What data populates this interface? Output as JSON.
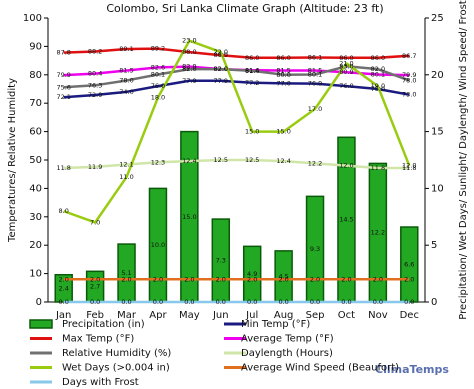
{
  "chart_data": {
    "type": "combo",
    "title": "Colombo, Sri Lanka Climate Graph (Altitude: 23 ft)",
    "y_label": "Temperatures/ Relative Humidity",
    "y2_label": "Precipitation/ Wet Days/ Sunlight/ Daylength/ Wind Speed/ Frost",
    "categories": [
      "Jan",
      "Feb",
      "Mar",
      "Apr",
      "May",
      "Jun",
      "Jul",
      "Aug",
      "Sep",
      "Oct",
      "Nov",
      "Dec"
    ],
    "ylim": [
      0,
      100
    ],
    "yticks": [
      0,
      10,
      20,
      30,
      40,
      50,
      60,
      70,
      80,
      90,
      100
    ],
    "y2lim": [
      0,
      25
    ],
    "y2ticks": [
      0,
      5,
      10,
      15,
      20,
      25
    ],
    "series": [
      {
        "name": "Precipitation (in)",
        "type": "bar",
        "axis": "y2",
        "color": "#22a822",
        "values": [
          2.4,
          2.7,
          5.1,
          10.0,
          15.0,
          7.3,
          4.9,
          4.5,
          9.3,
          14.5,
          12.2,
          6.6
        ],
        "value_labels": [
          "2.4",
          "2.7",
          "5.1",
          "10.0",
          "15.0",
          "7.3",
          "4.9",
          "4.5",
          "9.3",
          "14.5",
          "12.2",
          "6.6"
        ]
      },
      {
        "name": "Min Temp (°F)",
        "type": "line",
        "color": "#1a1a80",
        "values": [
          72.1,
          72.9,
          74.0,
          76.0,
          77.9,
          77.9,
          77.2,
          77.0,
          76.9,
          76.0,
          75.0,
          73.0
        ],
        "value_labels": [
          "72.1",
          "72.9",
          "74.0",
          "76.0",
          "77.9",
          "77.9",
          "77.2",
          "77.0",
          "76.9",
          "76.0",
          "75.0",
          "73.0"
        ]
      },
      {
        "name": "Max Temp (°F)",
        "type": "line",
        "color": "#e01010",
        "values": [
          87.8,
          88.2,
          89.1,
          89.2,
          88.0,
          86.9,
          86.0,
          86.0,
          86.1,
          86.0,
          86.0,
          86.7
        ],
        "value_labels": [
          "87.8",
          "88.2",
          "89.1",
          "89.2",
          "88.0",
          "86.9",
          "86.0",
          "86.0",
          "86.1",
          "86.0",
          "86.0",
          "86.7"
        ]
      },
      {
        "name": "Average Temp (°F)",
        "type": "line",
        "color": "#ee00ee",
        "values": [
          79.9,
          80.4,
          81.5,
          82.6,
          82.9,
          82.0,
          81.6,
          81.5,
          81.5,
          80.9,
          80.1,
          79.9
        ],
        "value_labels": [
          "79.9",
          "80.4",
          "81.5",
          "82.6",
          "82.9",
          "82.0",
          "81.6",
          "81.5",
          "81.5",
          "80.9",
          "80.1",
          "79.9"
        ]
      },
      {
        "name": "Relative Humidity (%)",
        "type": "line",
        "color": "#707070",
        "values": [
          75.6,
          76.3,
          78.0,
          80.1,
          82.0,
          82.0,
          81.4,
          80.0,
          80.1,
          83.0,
          82.0,
          78.0
        ],
        "value_labels": [
          "75.6",
          "76.3",
          "78.0",
          "80.1",
          "82.0",
          "82.0",
          "81.4",
          "80.0",
          "80.1",
          "83.0",
          "82.0",
          "78.0"
        ]
      },
      {
        "name": "Daylength (Hours)",
        "type": "line",
        "axis": "y2",
        "color": "#cfe6a8",
        "values": [
          11.8,
          11.9,
          12.1,
          12.3,
          12.4,
          12.5,
          12.5,
          12.4,
          12.2,
          12.0,
          11.8,
          11.8
        ],
        "value_labels": [
          "11.8",
          "11.9",
          "12.1",
          "12.3",
          "12.4",
          "12.5",
          "12.5",
          "12.4",
          "12.2",
          "12.0",
          "11.8",
          "11.8"
        ]
      },
      {
        "name": "Wet Days (>0.004 in)",
        "type": "line",
        "axis": "y2",
        "color": "#99cc11",
        "values": [
          8.0,
          7.0,
          11.0,
          18.0,
          23.0,
          22.0,
          15.0,
          15.0,
          17.0,
          21.0,
          19.0,
          12.0
        ],
        "value_labels": [
          "8.0",
          "7.0",
          "11.0",
          "18.0",
          "23.0",
          "22.0",
          "15.0",
          "15.0",
          "17.0",
          "21.0",
          "19.0",
          "12.0"
        ]
      },
      {
        "name": "Average Wind Speed (Beaufort)",
        "type": "line",
        "axis": "y2",
        "color": "#e07020",
        "values": [
          2.0,
          2.0,
          2.0,
          2.0,
          2.0,
          2.0,
          2.0,
          2.0,
          2.0,
          2.0,
          2.0,
          2.0
        ],
        "value_labels": [
          "2.0",
          "2.0",
          "2.0",
          "2.0",
          "2.0",
          "2.0",
          "2.0",
          "2.0",
          "2.0",
          "2.0",
          "2.0",
          "2.0"
        ]
      },
      {
        "name": "Days with Frost",
        "type": "line",
        "axis": "y2",
        "color": "#88c8ea",
        "values": [
          0.0,
          0.0,
          0.0,
          0.0,
          0.0,
          0.0,
          0.0,
          0.0,
          0.0,
          0.0,
          0.0,
          0.0
        ],
        "value_labels": [
          "0.0",
          "0.0",
          "0.0",
          "0.0",
          "0.0",
          "0.0",
          "0.0",
          "0.0",
          "0.0",
          "0.0",
          "0.0",
          "0.0"
        ]
      }
    ],
    "branding": "ClimaTemps"
  }
}
